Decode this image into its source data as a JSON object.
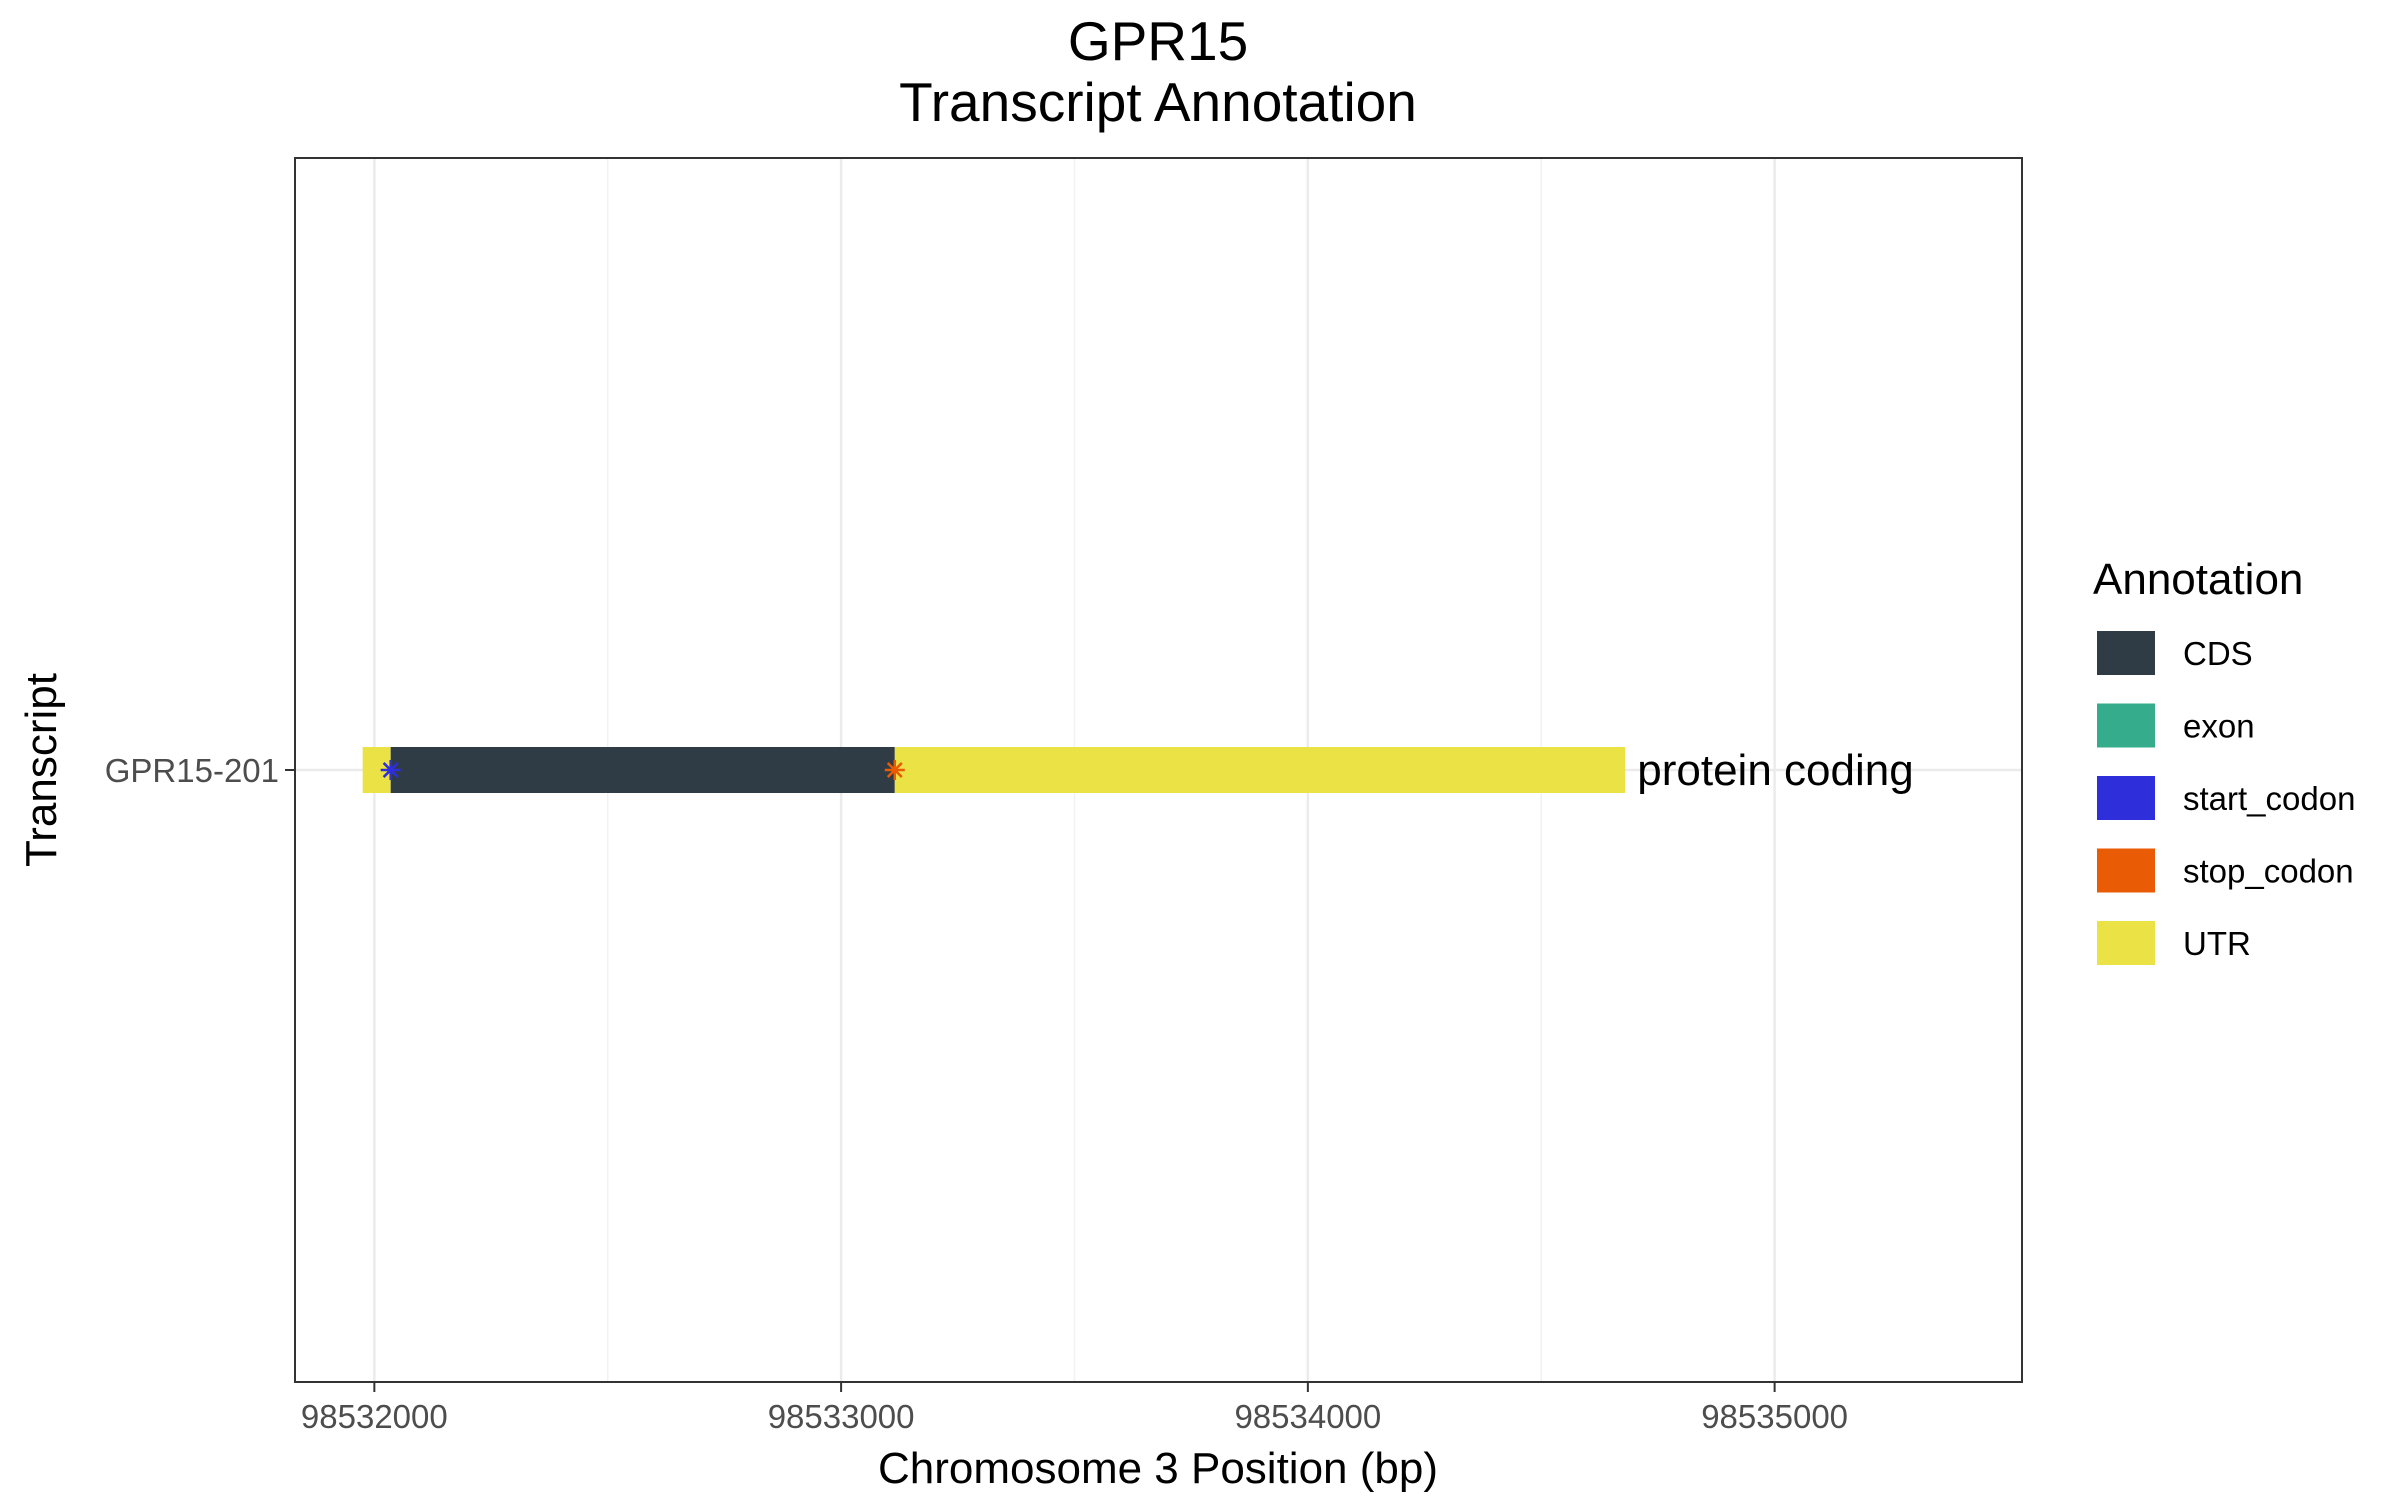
{
  "chart_data": {
    "type": "gene-structure",
    "title_lines": [
      "GPR15",
      "Transcript Annotation"
    ],
    "xlabel": "Chromosome 3 Position (bp)",
    "ylabel": "Transcript",
    "xlim": [
      98531830,
      98535530
    ],
    "x_ticks": [
      98532000,
      98533000,
      98534000,
      98535000
    ],
    "x_tick_labels": [
      "98532000",
      "98533000",
      "98534000",
      "98535000"
    ],
    "grid": true,
    "transcripts": [
      {
        "name": "GPR15-201",
        "biotype_label": "protein coding",
        "start": 98531975,
        "end": 98534680
      }
    ],
    "segments": [
      {
        "transcript": "GPR15-201",
        "feature": "UTR",
        "start": 98531975,
        "end": 98532035
      },
      {
        "transcript": "GPR15-201",
        "feature": "CDS",
        "start": 98532035,
        "end": 98533115
      },
      {
        "transcript": "GPR15-201",
        "feature": "UTR",
        "start": 98533115,
        "end": 98534680
      }
    ],
    "codons": [
      {
        "transcript": "GPR15-201",
        "feature": "start_codon",
        "position": 98532035
      },
      {
        "transcript": "GPR15-201",
        "feature": "stop_codon",
        "position": 98533115
      }
    ],
    "legend": {
      "title": "Annotation",
      "placement": "right",
      "entries": [
        {
          "label": "CDS",
          "color": "#2f3b45"
        },
        {
          "label": "exon",
          "color": "#35ad8c"
        },
        {
          "label": "start_codon",
          "color": "#2e2edb"
        },
        {
          "label": "stop_codon",
          "color": "#ea5b06"
        },
        {
          "label": "UTR",
          "color": "#ebe245"
        }
      ]
    }
  }
}
